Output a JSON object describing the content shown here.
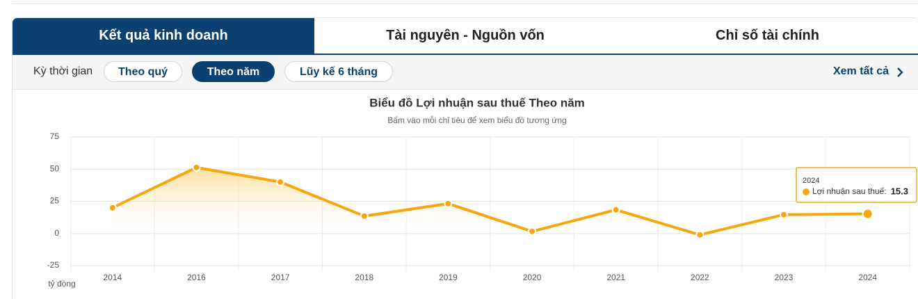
{
  "tabs": [
    "Kết quả kinh doanh",
    "Tài nguyên - Nguồn vốn",
    "Chỉ số tài chính"
  ],
  "filter": {
    "label": "Kỳ thời gian",
    "options": [
      "Theo quý",
      "Theo năm",
      "Lũy kế 6 tháng"
    ],
    "view_all": "Xem tất cả"
  },
  "chart_data": {
    "type": "line",
    "title": "Biểu đồ Lợi nhuận sau thuế Theo năm",
    "subtitle": "Bấm vào mỗi chỉ tiêu để xem biểu đồ tương ứng",
    "y_label": "tỷ đồng",
    "categories": [
      "2014",
      "2016",
      "2017",
      "2018",
      "2019",
      "2020",
      "2021",
      "2022",
      "2023",
      "2024"
    ],
    "series": [
      {
        "name": "Lợi nhuận sau thuế",
        "color": "#f6a70f",
        "values": [
          20.0,
          51.3,
          40.0,
          13.5,
          23.2,
          1.6,
          18.4,
          -1.1,
          14.6,
          15.3
        ]
      }
    ],
    "ylim": [
      -25,
      75
    ],
    "yticks": [
      -25,
      0,
      25,
      50,
      75
    ],
    "grid": true,
    "tooltip": {
      "category": "2024",
      "label": "Lợi nhuận sau thuế:"
    }
  }
}
